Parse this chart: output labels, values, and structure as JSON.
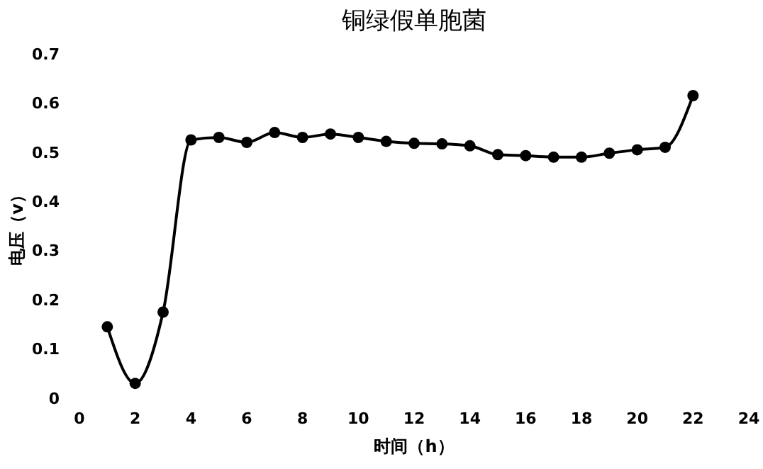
{
  "chart_data": {
    "type": "line",
    "title": "铜绿假单胞菌",
    "xlabel": "时间（h）",
    "ylabel": "电压（v）",
    "x": [
      1,
      2,
      3,
      4,
      5,
      6,
      7,
      8,
      9,
      10,
      11,
      12,
      13,
      14,
      15,
      16,
      17,
      18,
      19,
      20,
      21,
      22
    ],
    "series": [
      {
        "color": "#000000",
        "values": [
          0.145,
          0.03,
          0.175,
          0.525,
          0.53,
          0.52,
          0.54,
          0.53,
          0.537,
          0.53,
          0.522,
          0.518,
          0.517,
          0.513,
          0.495,
          0.493,
          0.49,
          0.49,
          0.498,
          0.505,
          0.51,
          0.615
        ]
      }
    ],
    "xlim": [
      0,
      24
    ],
    "xticks": [
      0,
      2,
      4,
      6,
      8,
      10,
      12,
      14,
      16,
      18,
      20,
      22,
      24
    ],
    "ylim": [
      0,
      0.7
    ],
    "yticks": [
      0,
      0.1,
      0.2,
      0.3,
      0.4,
      0.5,
      0.6,
      0.7
    ],
    "marker": "circle",
    "line_style": "solid",
    "grid": false
  }
}
